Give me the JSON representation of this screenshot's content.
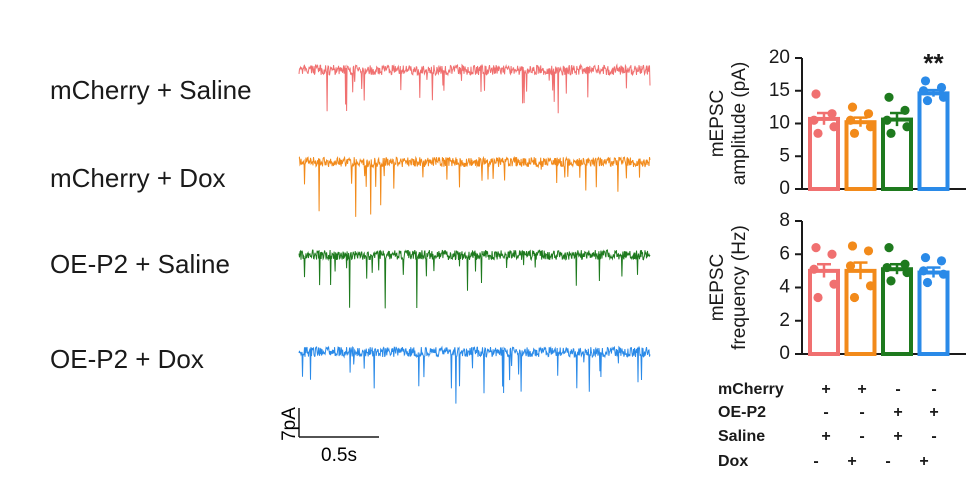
{
  "traces": {
    "labels": [
      "mCherry + Saline",
      "mCherry + Dox",
      "OE-P2 + Saline",
      "OE-P2 + Dox"
    ],
    "colors": [
      "#f07070",
      "#f28a1a",
      "#1e7a1e",
      "#2a8ae8"
    ],
    "scalebar": {
      "y_label": "7pA",
      "x_label": "0.5s"
    }
  },
  "chart_data": [
    {
      "type": "bar",
      "ylabel": [
        "mEPSC",
        "amplitude (pA)"
      ],
      "ylim": [
        0,
        20
      ],
      "yticks": [
        "0",
        "5",
        "10",
        "15",
        "20"
      ],
      "categories": [
        "mCherry + Saline",
        "mCherry + Dox",
        "OE-P2 + Saline",
        "OE-P2 + Dox"
      ],
      "values": [
        10.7,
        10.2,
        10.6,
        14.6
      ],
      "errors": [
        0.9,
        0.7,
        1.0,
        0.5
      ],
      "points": [
        [
          14.5,
          11.5,
          10.5,
          9.5,
          8.5
        ],
        [
          12.5,
          11.5,
          10.5,
          9.5,
          8.5
        ],
        [
          14.0,
          12.0,
          10.5,
          9.5,
          8.5
        ],
        [
          16.5,
          15.5,
          15.0,
          14.0,
          13.5
        ]
      ],
      "colors": [
        "#f07070",
        "#f28a1a",
        "#1e7a1e",
        "#2a8ae8"
      ],
      "annotation": "**"
    },
    {
      "type": "bar",
      "ylabel": [
        "mEPSC",
        "frequency (Hz)"
      ],
      "ylim": [
        0,
        8
      ],
      "yticks": [
        "0",
        "2",
        "4",
        "6",
        "8"
      ],
      "categories": [
        "mCherry + Saline",
        "mCherry + Dox",
        "OE-P2 + Saline",
        "OE-P2 + Dox"
      ],
      "values": [
        5.0,
        5.0,
        5.1,
        4.9
      ],
      "errors": [
        0.4,
        0.5,
        0.3,
        0.3
      ],
      "points": [
        [
          6.4,
          6.0,
          5.1,
          4.2,
          3.4
        ],
        [
          6.5,
          6.2,
          5.3,
          4.1,
          3.4
        ],
        [
          6.4,
          5.4,
          5.2,
          4.9,
          4.4
        ],
        [
          5.8,
          5.6,
          5.0,
          4.8,
          4.3
        ]
      ],
      "colors": [
        "#f07070",
        "#f28a1a",
        "#1e7a1e",
        "#2a8ae8"
      ]
    }
  ],
  "condition_table": {
    "rows": [
      {
        "label": "mCherry",
        "values": [
          "+",
          "+",
          "-",
          "-"
        ]
      },
      {
        "label": "OE-P2",
        "values": [
          "-",
          "-",
          "+",
          "+"
        ]
      },
      {
        "label": "Saline",
        "values": [
          "+",
          "-",
          "+",
          "-"
        ]
      },
      {
        "label": "Dox",
        "values": [
          "-",
          "+",
          "-",
          "+"
        ]
      }
    ]
  }
}
